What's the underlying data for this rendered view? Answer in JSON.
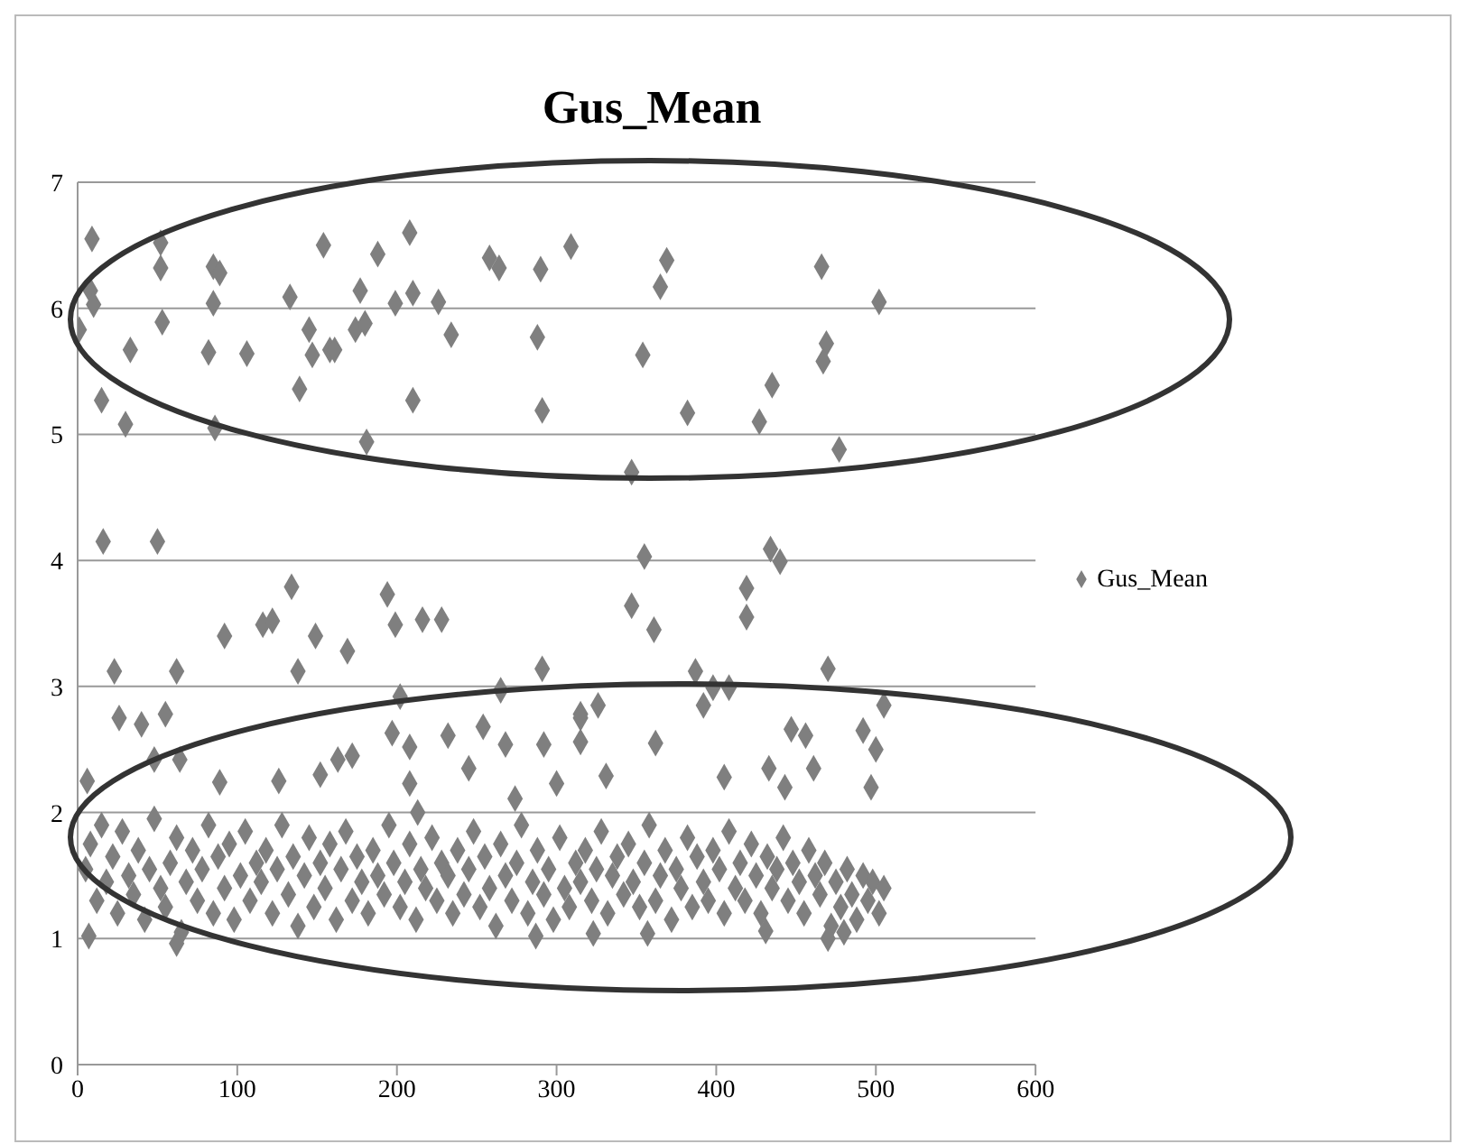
{
  "chart_data": {
    "type": "scatter",
    "title": "Gus_Mean",
    "xlim": [
      0,
      600
    ],
    "xticks": [
      0,
      100,
      200,
      300,
      400,
      500,
      600
    ],
    "ylim": [
      0,
      7
    ],
    "yticks": [
      0,
      1,
      2,
      3,
      4,
      5,
      6,
      7
    ],
    "grid": "y",
    "legend": "right",
    "marker": "diamond",
    "series": [
      {
        "name": "Gus_Mean",
        "color": "#7f7f7f",
        "x": [
          9,
          52,
          52,
          85,
          89,
          154,
          188,
          208,
          258,
          264,
          290,
          309,
          369,
          466,
          8,
          10,
          1,
          85,
          133,
          177,
          199,
          210,
          226,
          365,
          53,
          33,
          82,
          106,
          145,
          147,
          158,
          161,
          174,
          180,
          234,
          288,
          354,
          469,
          467,
          15,
          30,
          139,
          210,
          291,
          382,
          427,
          435,
          86,
          181,
          347,
          477,
          502,
          16,
          50,
          23,
          62,
          92,
          116,
          122,
          134,
          149,
          138,
          169,
          194,
          199,
          216,
          228,
          291,
          347,
          355,
          361,
          387,
          419,
          419,
          434,
          440,
          470,
          398,
          408,
          265,
          202,
          315,
          26,
          40,
          55,
          48,
          64,
          6,
          89,
          126,
          152,
          163,
          172,
          197,
          208,
          232,
          208,
          213,
          254,
          268,
          292,
          315,
          315,
          362,
          245,
          274,
          300,
          331,
          405,
          433,
          443,
          461,
          447,
          456,
          392,
          326,
          505,
          492,
          500,
          497,
          5,
          8,
          12,
          15,
          18,
          22,
          25,
          28,
          32,
          35,
          38,
          42,
          45,
          48,
          52,
          55,
          58,
          62,
          65,
          68,
          72,
          75,
          78,
          82,
          85,
          88,
          92,
          95,
          98,
          102,
          105,
          108,
          112,
          115,
          118,
          122,
          125,
          128,
          132,
          135,
          138,
          142,
          145,
          148,
          152,
          155,
          158,
          162,
          165,
          168,
          172,
          175,
          178,
          182,
          185,
          188,
          192,
          195,
          198,
          202,
          205,
          208,
          212,
          215,
          218,
          222,
          225,
          228,
          232,
          235,
          238,
          242,
          245,
          248,
          252,
          255,
          258,
          262,
          265,
          268,
          272,
          275,
          278,
          282,
          285,
          288,
          292,
          295,
          298,
          302,
          305,
          308,
          312,
          315,
          318,
          322,
          325,
          328,
          332,
          335,
          338,
          342,
          345,
          348,
          352,
          355,
          358,
          362,
          365,
          368,
          372,
          375,
          378,
          382,
          385,
          388,
          392,
          395,
          398,
          402,
          405,
          408,
          412,
          415,
          418,
          422,
          425,
          428,
          432,
          435,
          438,
          442,
          445,
          448,
          452,
          455,
          458,
          462,
          465,
          468,
          472,
          475,
          478,
          482,
          485,
          488,
          492,
          495,
          498,
          502,
          505,
          7,
          62,
          287,
          323,
          357,
          431,
          470,
          480
        ],
        "values": [
          6.55,
          6.52,
          6.32,
          6.33,
          6.28,
          6.5,
          6.43,
          6.6,
          6.4,
          6.32,
          6.31,
          6.49,
          6.38,
          6.33,
          6.14,
          6.03,
          5.83,
          6.04,
          6.09,
          6.14,
          6.04,
          6.12,
          6.05,
          6.17,
          5.89,
          5.67,
          5.65,
          5.64,
          5.83,
          5.63,
          5.67,
          5.67,
          5.83,
          5.88,
          5.79,
          5.77,
          5.63,
          5.72,
          5.58,
          5.27,
          5.08,
          5.36,
          5.27,
          5.19,
          5.17,
          5.1,
          5.39,
          5.05,
          4.94,
          4.7,
          4.88,
          6.05,
          4.15,
          4.15,
          3.12,
          3.12,
          3.4,
          3.49,
          3.52,
          3.79,
          3.4,
          3.12,
          3.28,
          3.73,
          3.49,
          3.53,
          3.53,
          3.14,
          3.64,
          4.03,
          3.45,
          3.12,
          3.78,
          3.55,
          4.09,
          3.99,
          3.14,
          2.99,
          2.99,
          2.97,
          2.92,
          2.78,
          2.75,
          2.7,
          2.78,
          2.42,
          2.42,
          2.25,
          2.24,
          2.25,
          2.3,
          2.42,
          2.45,
          2.63,
          2.52,
          2.61,
          2.23,
          2.0,
          2.68,
          2.54,
          2.54,
          2.75,
          2.56,
          2.55,
          2.35,
          2.11,
          2.23,
          2.29,
          2.28,
          2.35,
          2.2,
          2.35,
          2.66,
          2.61,
          2.85,
          2.85,
          2.85,
          2.65,
          2.5,
          2.2,
          1.55,
          1.75,
          1.3,
          1.9,
          1.45,
          1.65,
          1.2,
          1.85,
          1.5,
          1.35,
          1.7,
          1.15,
          1.55,
          1.95,
          1.4,
          1.25,
          1.6,
          1.8,
          1.05,
          1.45,
          1.7,
          1.3,
          1.55,
          1.9,
          1.2,
          1.65,
          1.4,
          1.75,
          1.15,
          1.5,
          1.85,
          1.3,
          1.6,
          1.45,
          1.7,
          1.2,
          1.55,
          1.9,
          1.35,
          1.65,
          1.1,
          1.5,
          1.8,
          1.25,
          1.6,
          1.4,
          1.75,
          1.15,
          1.55,
          1.85,
          1.3,
          1.65,
          1.45,
          1.2,
          1.7,
          1.5,
          1.35,
          1.9,
          1.6,
          1.25,
          1.45,
          1.75,
          1.15,
          1.55,
          1.4,
          1.8,
          1.3,
          1.6,
          1.5,
          1.2,
          1.7,
          1.35,
          1.55,
          1.85,
          1.25,
          1.65,
          1.4,
          1.1,
          1.75,
          1.5,
          1.3,
          1.6,
          1.9,
          1.2,
          1.45,
          1.7,
          1.35,
          1.55,
          1.15,
          1.8,
          1.4,
          1.25,
          1.6,
          1.45,
          1.7,
          1.3,
          1.55,
          1.85,
          1.2,
          1.5,
          1.65,
          1.35,
          1.75,
          1.45,
          1.25,
          1.6,
          1.9,
          1.3,
          1.5,
          1.7,
          1.15,
          1.55,
          1.4,
          1.8,
          1.25,
          1.65,
          1.45,
          1.3,
          1.7,
          1.55,
          1.2,
          1.85,
          1.4,
          1.6,
          1.3,
          1.75,
          1.5,
          1.2,
          1.65,
          1.4,
          1.55,
          1.8,
          1.3,
          1.6,
          1.45,
          1.2,
          1.7,
          1.5,
          1.35,
          1.6,
          1.1,
          1.45,
          1.25,
          1.55,
          1.35,
          1.15,
          1.5,
          1.3,
          1.45,
          1.2,
          1.4,
          1.02,
          0.96,
          1.02,
          1.04,
          1.04,
          1.06,
          1.0,
          1.05
        ]
      }
    ]
  }
}
